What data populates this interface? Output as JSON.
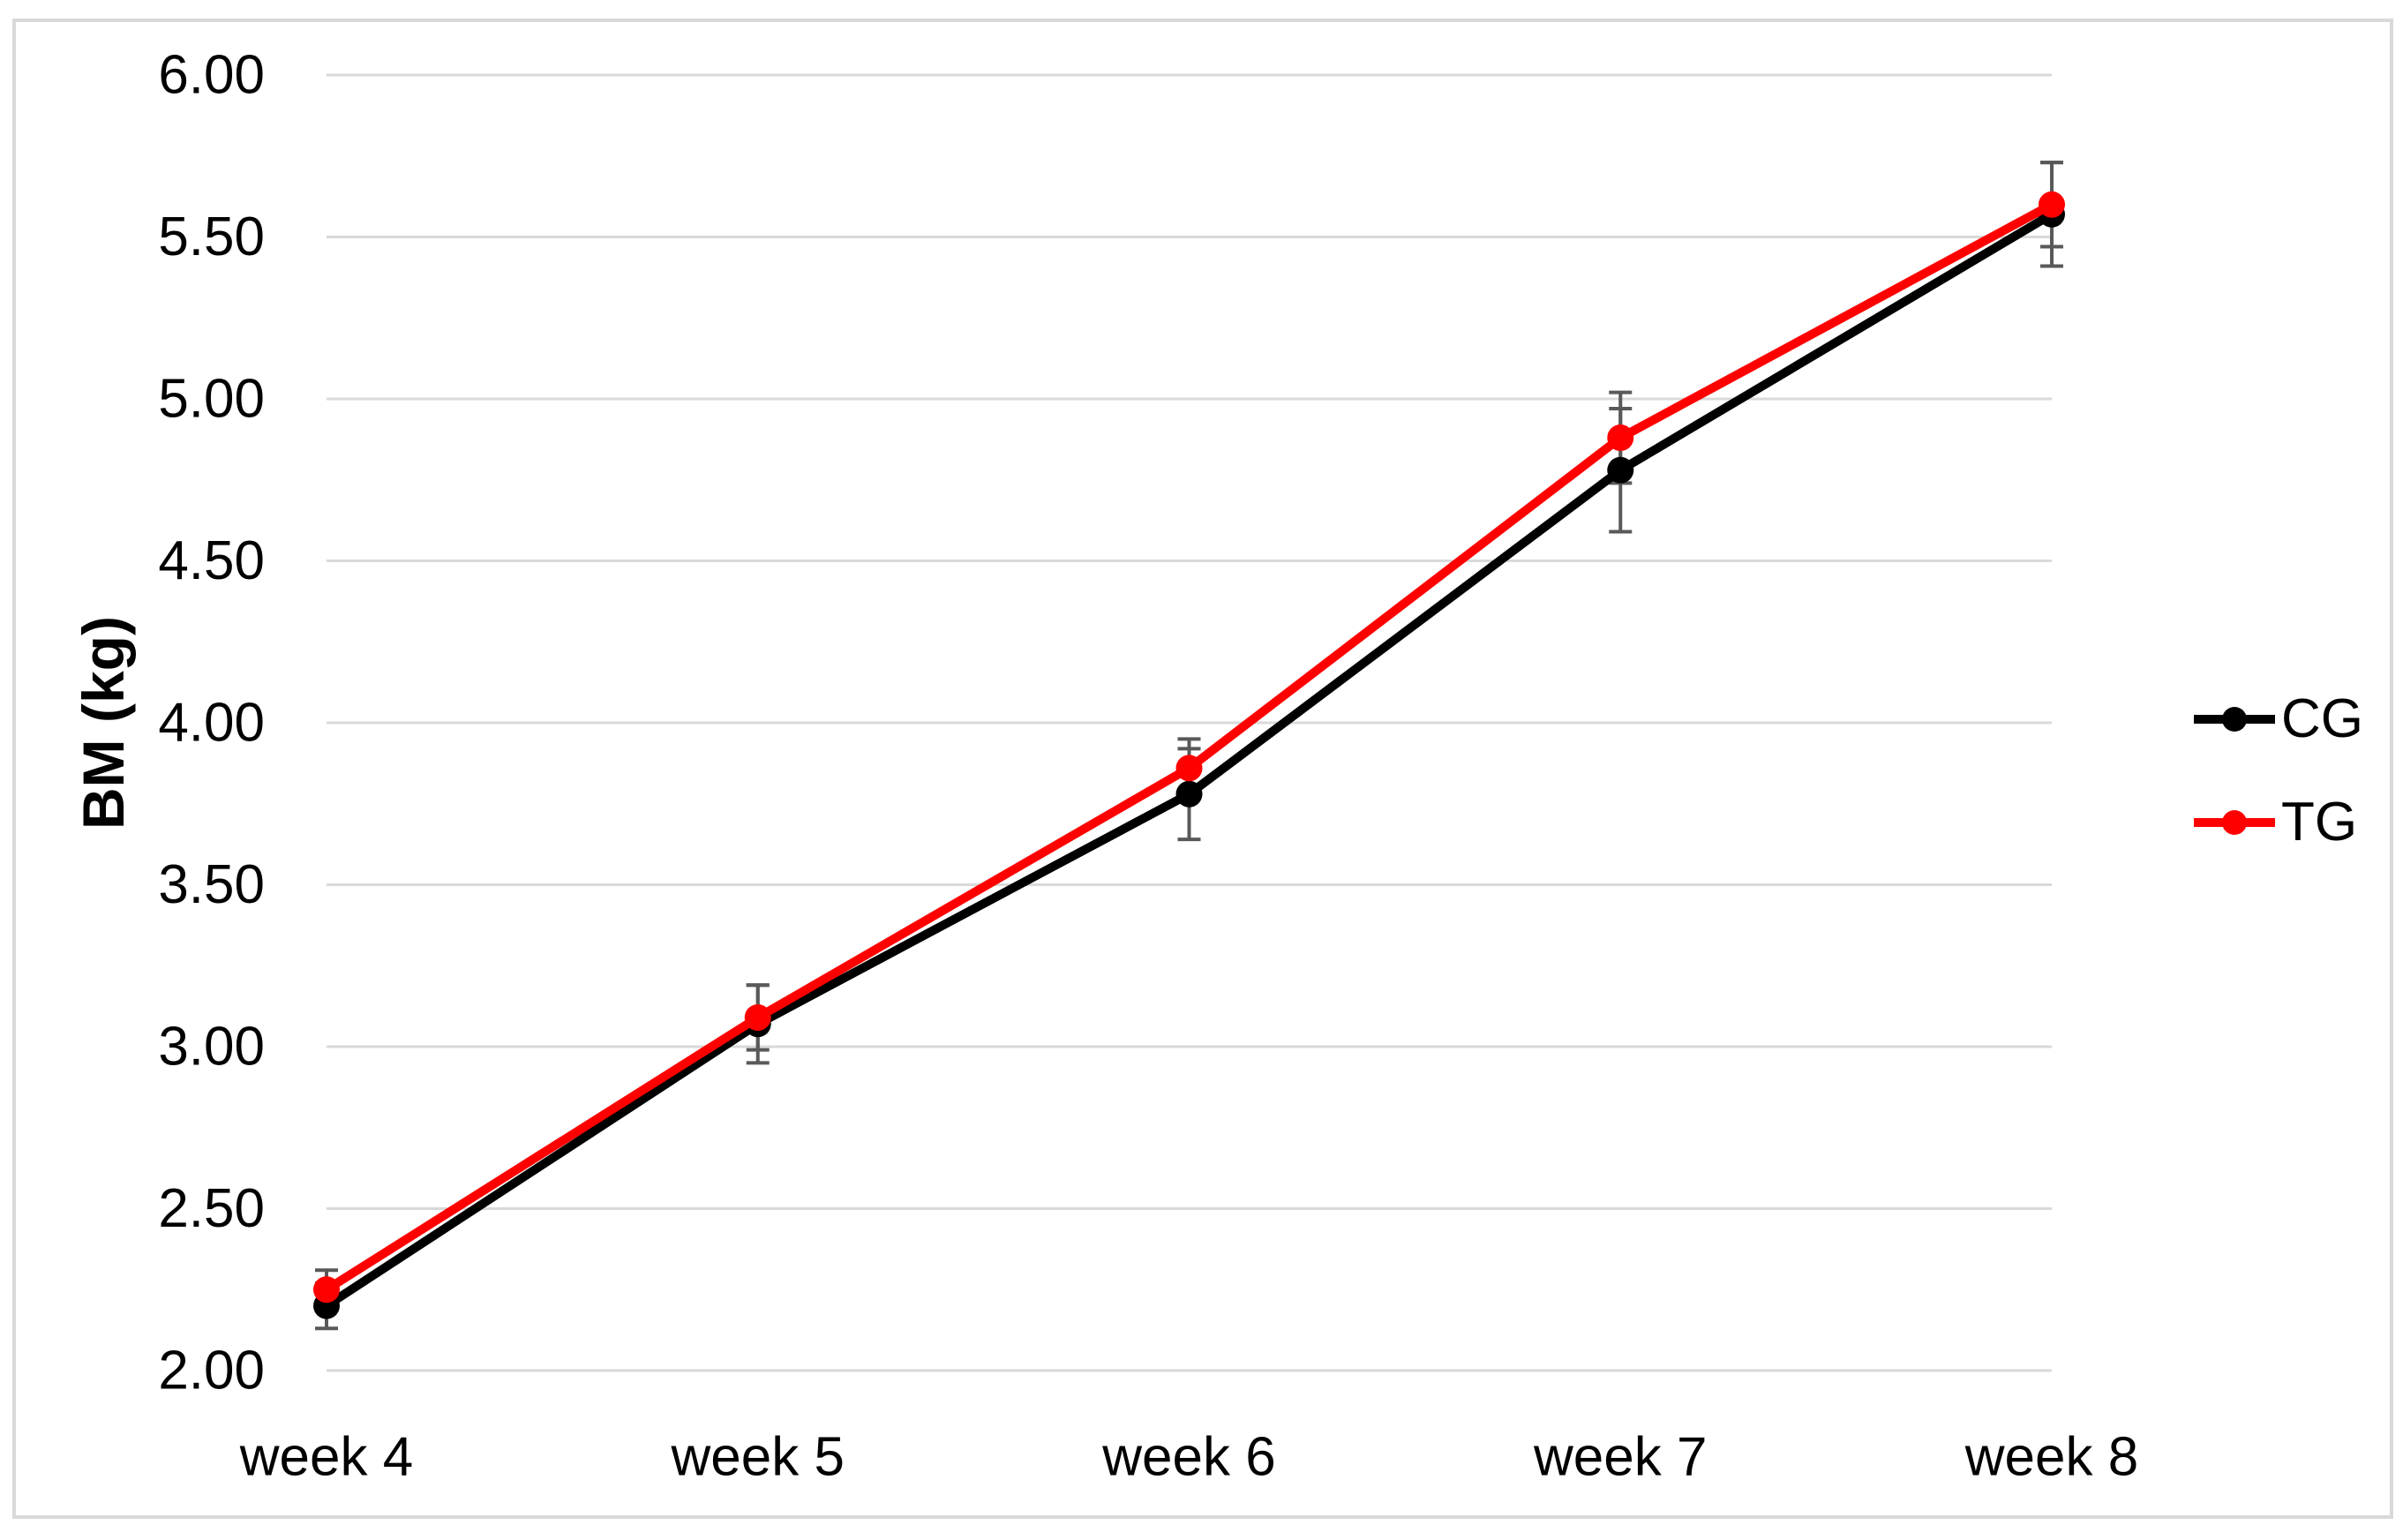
{
  "figure": {
    "background": "#ffffff",
    "border_color": "#d9d9d9"
  },
  "chart_data": {
    "type": "line",
    "title": "",
    "xlabel": "",
    "ylabel": "BM (kg)",
    "categories": [
      "week 4",
      "week 5",
      "week 6",
      "week 7",
      "week 8"
    ],
    "series": [
      {
        "name": "CG",
        "color": "#000000",
        "values": [
          2.2,
          3.07,
          3.78,
          4.78,
          5.57
        ],
        "error_bars": [
          0.07,
          0.12,
          0.14,
          0.19,
          0.16
        ]
      },
      {
        "name": "TG",
        "color": "#ff0000",
        "values": [
          2.25,
          3.09,
          3.86,
          4.88,
          5.6
        ],
        "error_bars": [
          0.06,
          0.1,
          0.09,
          0.14,
          0.13
        ]
      }
    ],
    "ylim": [
      2.0,
      6.0
    ],
    "yticks": [
      2.0,
      2.5,
      3.0,
      3.5,
      4.0,
      4.5,
      5.0,
      5.5,
      6.0
    ],
    "ytick_labels": [
      "2.00",
      "2.50",
      "3.00",
      "3.50",
      "4.00",
      "4.50",
      "5.00",
      "5.50",
      "6.00"
    ],
    "grid": true,
    "gridline_color": "#d9d9d9",
    "error_bar_color": "#595959",
    "legend_position": "right"
  }
}
